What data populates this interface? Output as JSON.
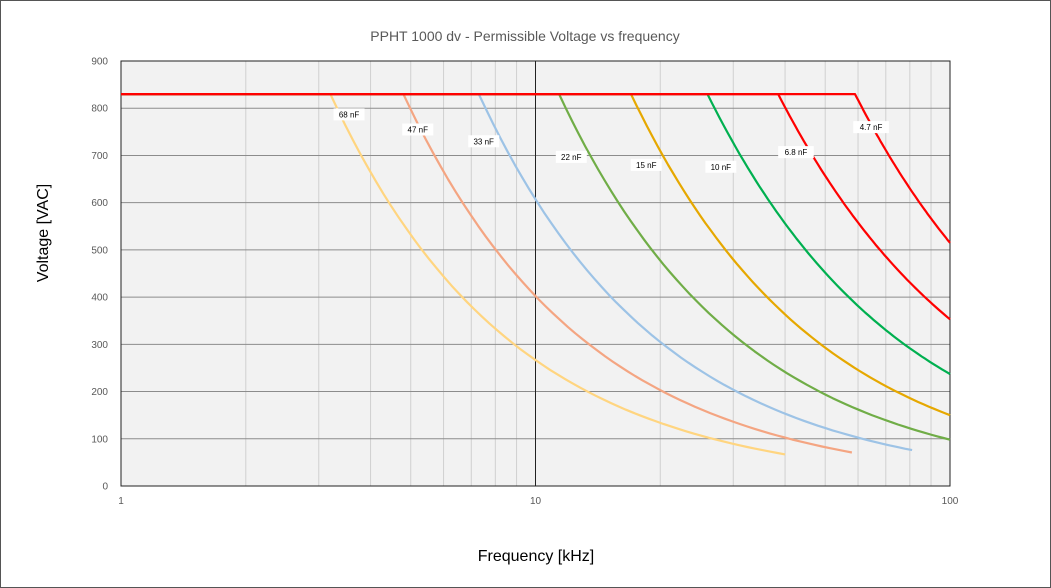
{
  "chart_data": {
    "type": "line",
    "title": "PPHT 1000 dv - Permissible Voltage vs frequency",
    "xlabel": "Frequency [kHz]",
    "ylabel": "Voltage [VAC]",
    "x_scale": "log",
    "xlim": [
      1,
      100
    ],
    "ylim": [
      0,
      900
    ],
    "x_ticks": [
      {
        "value": 1,
        "label": "1"
      },
      {
        "value": 10,
        "label": "10"
      },
      {
        "value": 100,
        "label": "100"
      }
    ],
    "y_ticks": [
      {
        "value": 0,
        "label": "0"
      },
      {
        "value": 100,
        "label": "100"
      },
      {
        "value": 200,
        "label": "200"
      },
      {
        "value": 300,
        "label": "300"
      },
      {
        "value": 400,
        "label": "400"
      },
      {
        "value": 500,
        "label": "500"
      },
      {
        "value": 600,
        "label": "600"
      },
      {
        "value": 700,
        "label": "700"
      },
      {
        "value": 800,
        "label": "800"
      },
      {
        "value": 900,
        "label": "900"
      }
    ],
    "grid": true,
    "legend": "none",
    "series": [
      {
        "name": "68 nF",
        "color": "#FFD580",
        "max_voltage": 830,
        "knee_khz": 3.2,
        "end_khz": 40,
        "end_voltage": 67,
        "label_at": {
          "x": 3.55,
          "y": 787
        }
      },
      {
        "name": "47 nF",
        "color": "#F4A582",
        "max_voltage": 830,
        "knee_khz": 4.8,
        "end_khz": 58,
        "end_voltage": 71,
        "label_at": {
          "x": 5.2,
          "y": 755
        }
      },
      {
        "name": "33 nF",
        "color": "#9DC3E6",
        "max_voltage": 830,
        "knee_khz": 7.3,
        "end_khz": 81,
        "end_voltage": 76,
        "label_at": {
          "x": 7.5,
          "y": 730
        }
      },
      {
        "name": "22 nF",
        "color": "#70AD47",
        "max_voltage": 830,
        "knee_khz": 11.4,
        "end_khz": 100,
        "end_voltage": 98,
        "label_at": {
          "x": 12.2,
          "y": 697
        }
      },
      {
        "name": "15 nF",
        "color": "#E6A800",
        "max_voltage": 830,
        "knee_khz": 17,
        "end_khz": 100,
        "end_voltage": 150,
        "label_at": {
          "x": 18.5,
          "y": 680
        }
      },
      {
        "name": "10 nF",
        "color": "#00B050",
        "max_voltage": 830,
        "knee_khz": 26,
        "end_khz": 100,
        "end_voltage": 237,
        "label_at": {
          "x": 28,
          "y": 676
        }
      },
      {
        "name": "6.8 nF",
        "color": "#FF0000",
        "max_voltage": 830,
        "knee_khz": 38.5,
        "end_khz": 100,
        "end_voltage": 353,
        "label_at": {
          "x": 42.5,
          "y": 707
        }
      },
      {
        "name": "4.7 nF",
        "color": "#FF0000",
        "max_voltage": 830,
        "knee_khz": 59,
        "end_khz": 100,
        "end_voltage": 515,
        "label_at": {
          "x": 64.5,
          "y": 760
        }
      }
    ]
  }
}
